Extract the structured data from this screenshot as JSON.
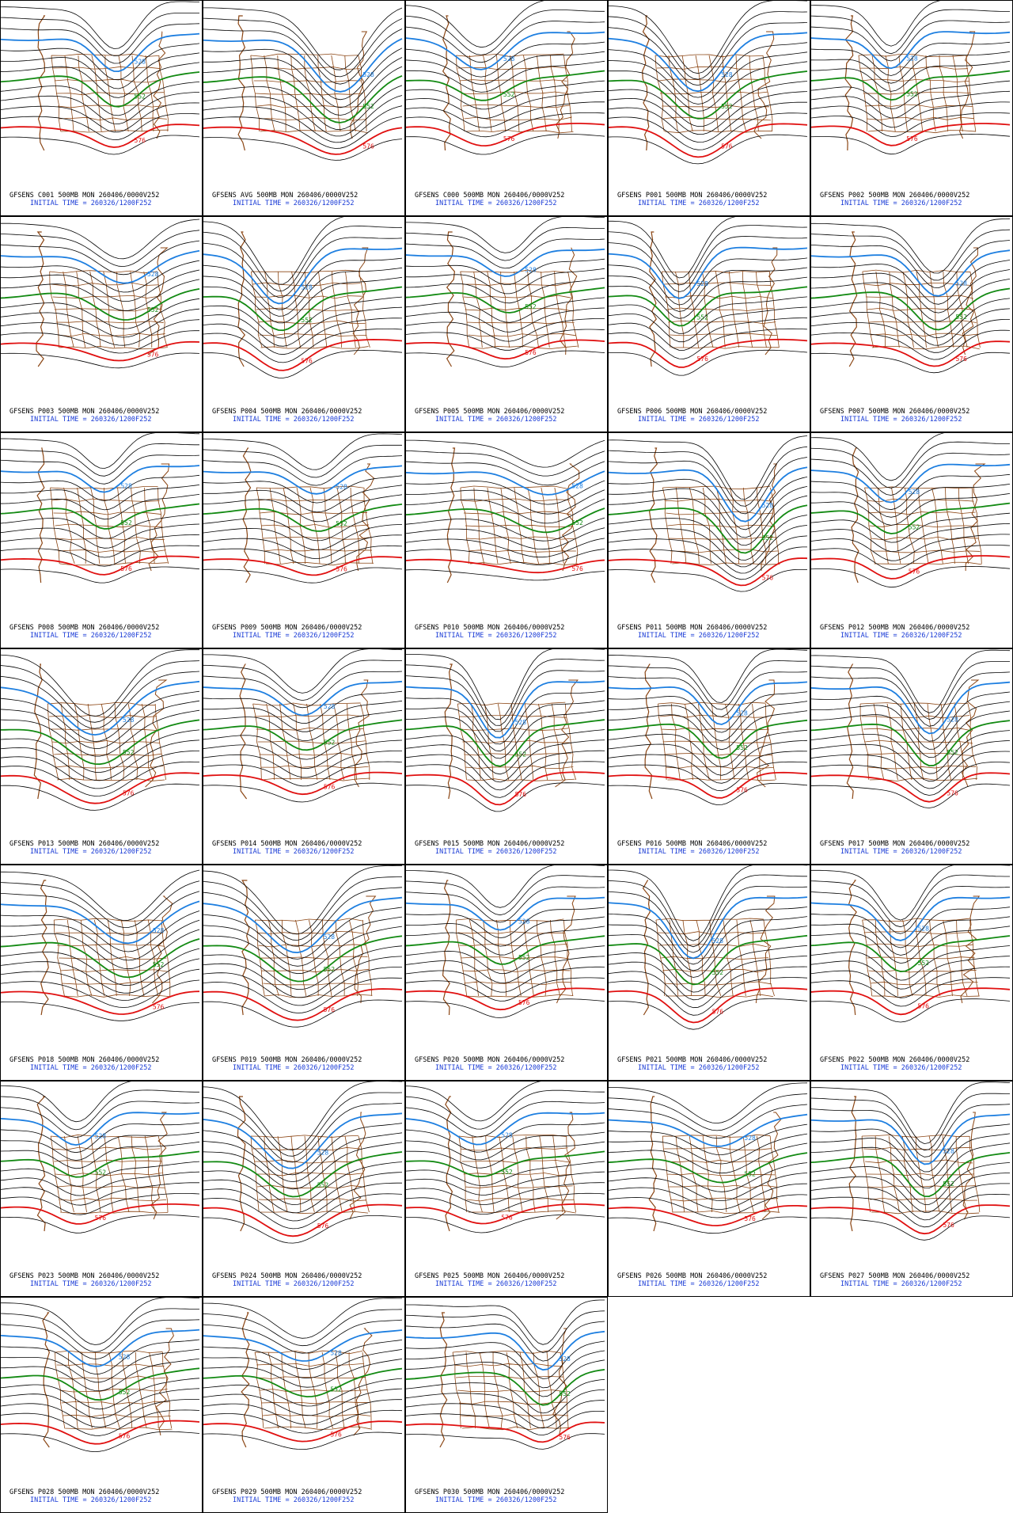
{
  "panels": [
    {
      "title": "GFSENS C001 500MB MON 260406/0000V252",
      "init": "INITIAL TIME = 260326/1200F252",
      "labels": [
        "528",
        "552",
        "576"
      ]
    },
    {
      "title": "GFSENS AVG 500MB MON 260406/0000V252",
      "init": "INITIAL TIME = 260326/1200F252",
      "labels": [
        "528",
        "552",
        "576"
      ]
    },
    {
      "title": "GFSENS C000 500MB MON 260406/0000V252",
      "init": "INITIAL TIME = 260326/1200F252",
      "labels": [
        "528",
        "552",
        "576"
      ]
    },
    {
      "title": "GFSENS P001 500MB MON 260406/0000V252",
      "init": "INITIAL TIME = 260326/1200F252",
      "labels": [
        "528",
        "552",
        "576"
      ]
    },
    {
      "title": "GFSENS P002 500MB MON 260406/0000V252",
      "init": "INITIAL TIME = 260326/1200F252",
      "labels": [
        "528",
        "552",
        "576"
      ]
    },
    {
      "title": "GFSENS P003 500MB MON 260406/0000V252",
      "init": "INITIAL TIME = 260326/1200F252",
      "labels": [
        "528",
        "552",
        "576"
      ]
    },
    {
      "title": "GFSENS P004 500MB MON 260406/0000V252",
      "init": "INITIAL TIME = 260326/1200F252",
      "labels": [
        "528",
        "552",
        "576"
      ]
    },
    {
      "title": "GFSENS P005 500MB MON 260406/0000V252",
      "init": "INITIAL TIME = 260326/1200F252",
      "labels": [
        "528",
        "552",
        "576"
      ]
    },
    {
      "title": "GFSENS P006 500MB MON 260406/0000V252",
      "init": "INITIAL TIME = 260326/1200F252",
      "labels": [
        "528",
        "552",
        "576"
      ]
    },
    {
      "title": "GFSENS P007 500MB MON 260406/0000V252",
      "init": "INITIAL TIME = 260326/1200F252",
      "labels": [
        "528",
        "552",
        "576"
      ]
    },
    {
      "title": "GFSENS P008 500MB MON 260406/0000V252",
      "init": "INITIAL TIME = 260326/1200F252",
      "labels": [
        "528",
        "552",
        "576"
      ]
    },
    {
      "title": "GFSENS P009 500MB MON 260406/0000V252",
      "init": "INITIAL TIME = 260326/1200F252",
      "labels": [
        "528",
        "552",
        "576"
      ]
    },
    {
      "title": "GFSENS P010 500MB MON 260406/0000V252",
      "init": "INITIAL TIME = 260326/1200F252",
      "labels": [
        "528",
        "552",
        "576"
      ]
    },
    {
      "title": "GFSENS P011 500MB MON 260406/0000V252",
      "init": "INITIAL TIME = 260326/1200F252",
      "labels": [
        "528",
        "552",
        "576"
      ]
    },
    {
      "title": "GFSENS P012 500MB MON 260406/0000V252",
      "init": "INITIAL TIME = 260326/1200F252",
      "labels": [
        "528",
        "552",
        "576"
      ]
    },
    {
      "title": "GFSENS P013 500MB MON 260406/0000V252",
      "init": "INITIAL TIME = 260326/1200F252",
      "labels": [
        "528",
        "552",
        "576"
      ]
    },
    {
      "title": "GFSENS P014 500MB MON 260406/0000V252",
      "init": "INITIAL TIME = 260326/1200F252",
      "labels": [
        "528",
        "552",
        "576"
      ]
    },
    {
      "title": "GFSENS P015 500MB MON 260406/0000V252",
      "init": "INITIAL TIME = 260326/1200F252",
      "labels": [
        "528",
        "552",
        "576"
      ]
    },
    {
      "title": "GFSENS P016 500MB MON 260406/0000V252",
      "init": "INITIAL TIME = 260326/1200F252",
      "labels": [
        "528",
        "552",
        "576"
      ]
    },
    {
      "title": "GFSENS P017 500MB MON 260406/0000V252",
      "init": "INITIAL TIME = 260326/1200F252",
      "labels": [
        "528",
        "552",
        "576"
      ]
    },
    {
      "title": "GFSENS P018 500MB MON 260406/0000V252",
      "init": "INITIAL TIME = 260326/1200F252",
      "labels": [
        "528",
        "552",
        "576"
      ]
    },
    {
      "title": "GFSENS P019 500MB MON 260406/0000V252",
      "init": "INITIAL TIME = 260326/1200F252",
      "labels": [
        "528",
        "552",
        "576"
      ]
    },
    {
      "title": "GFSENS P020 500MB MON 260406/0000V252",
      "init": "INITIAL TIME = 260326/1200F252",
      "labels": [
        "528",
        "552",
        "576"
      ]
    },
    {
      "title": "GFSENS P021 500MB MON 260406/0000V252",
      "init": "INITIAL TIME = 260326/1200F252",
      "labels": [
        "528",
        "552",
        "576"
      ]
    },
    {
      "title": "GFSENS P022 500MB MON 260406/0000V252",
      "init": "INITIAL TIME = 260326/1200F252",
      "labels": [
        "528",
        "552",
        "576"
      ]
    },
    {
      "title": "GFSENS P023 500MB MON 260406/0000V252",
      "init": "INITIAL TIME = 260326/1200F252",
      "labels": [
        "528",
        "552",
        "576"
      ]
    },
    {
      "title": "GFSENS P024 500MB MON 260406/0000V252",
      "init": "INITIAL TIME = 260326/1200F252",
      "labels": [
        "528",
        "552",
        "576"
      ]
    },
    {
      "title": "GFSENS P025 500MB MON 260406/0000V252",
      "init": "INITIAL TIME = 260326/1200F252",
      "labels": [
        "528",
        "552",
        "576"
      ]
    },
    {
      "title": "GFSENS P026 500MB MON 260406/0000V252",
      "init": "INITIAL TIME = 260326/1200F252",
      "labels": [
        "528",
        "552",
        "576"
      ]
    },
    {
      "title": "GFSENS P027 500MB MON 260406/0000V252",
      "init": "INITIAL TIME = 260326/1200F252",
      "labels": [
        "528",
        "552",
        "576"
      ]
    },
    {
      "title": "GFSENS P028 500MB MON 260406/0000V252",
      "init": "INITIAL TIME = 260326/1200F252",
      "labels": [
        "528",
        "552",
        "576"
      ]
    },
    {
      "title": "GFSENS P029 500MB MON 260406/0000V252",
      "init": "INITIAL TIME = 260326/1200F252",
      "labels": [
        "528",
        "552",
        "576"
      ]
    },
    {
      "title": "GFSENS P030 500MB MON 260406/0000V252",
      "init": "INITIAL TIME = 260326/1200F252",
      "labels": [
        "528",
        "552",
        "576"
      ]
    }
  ]
}
